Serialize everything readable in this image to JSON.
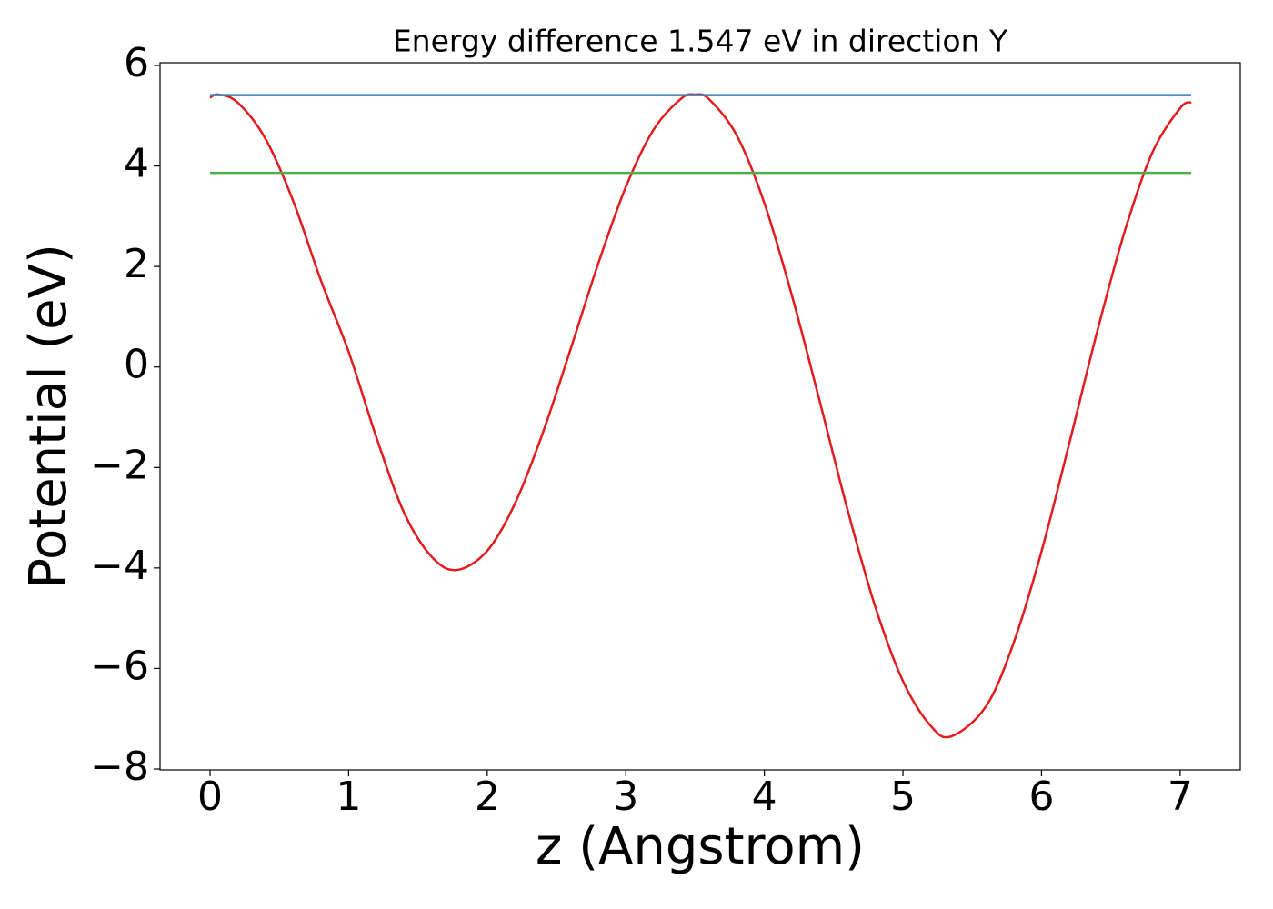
{
  "chart_data": {
    "type": "line",
    "title": "Energy difference 1.547 eV in direction Y",
    "xlabel": "z (Angstrom)",
    "ylabel": "Potential (eV)",
    "xlim": [
      -0.361,
      7.434
    ],
    "ylim": [
      -8.018,
      6.054
    ],
    "xticks": [
      0,
      1,
      2,
      3,
      4,
      5,
      6,
      7
    ],
    "yticks": [
      {
        "value": -8,
        "label": "−8"
      },
      {
        "value": -6,
        "label": "−6"
      },
      {
        "value": -4,
        "label": "−4"
      },
      {
        "value": -2,
        "label": "−2"
      },
      0,
      2,
      4,
      6
    ],
    "series": [
      {
        "color": "#e41a1c",
        "x": [
          0,
          0.06,
          0.2,
          0.4,
          0.6,
          0.8,
          1.0,
          1.2,
          1.4,
          1.6,
          1.78,
          2.0,
          2.2,
          2.4,
          2.6,
          2.8,
          3.0,
          3.2,
          3.4,
          3.5,
          3.6,
          3.8,
          4.0,
          4.2,
          4.4,
          4.6,
          4.8,
          5.0,
          5.2,
          5.35,
          5.6,
          5.8,
          6.0,
          6.2,
          6.4,
          6.6,
          6.8,
          7.0,
          7.08
        ],
        "values": [
          5.36,
          5.42,
          5.26,
          4.54,
          3.3,
          1.72,
          0.3,
          -1.4,
          -2.9,
          -3.78,
          -4.04,
          -3.66,
          -2.72,
          -1.32,
          0.34,
          2.05,
          3.58,
          4.72,
          5.34,
          5.42,
          5.33,
          4.61,
          3.26,
          1.41,
          -0.69,
          -2.84,
          -4.77,
          -6.25,
          -7.14,
          -7.35,
          -6.75,
          -5.48,
          -3.67,
          -1.52,
          0.69,
          2.7,
          4.27,
          5.15,
          5.27
        ]
      },
      {
        "color": "#377eb8",
        "x": [
          0,
          7.08
        ],
        "values": [
          5.41,
          5.41
        ]
      },
      {
        "color": "#4daf4a",
        "x": [
          0,
          7.08
        ],
        "values": [
          3.863,
          3.863
        ]
      }
    ]
  }
}
